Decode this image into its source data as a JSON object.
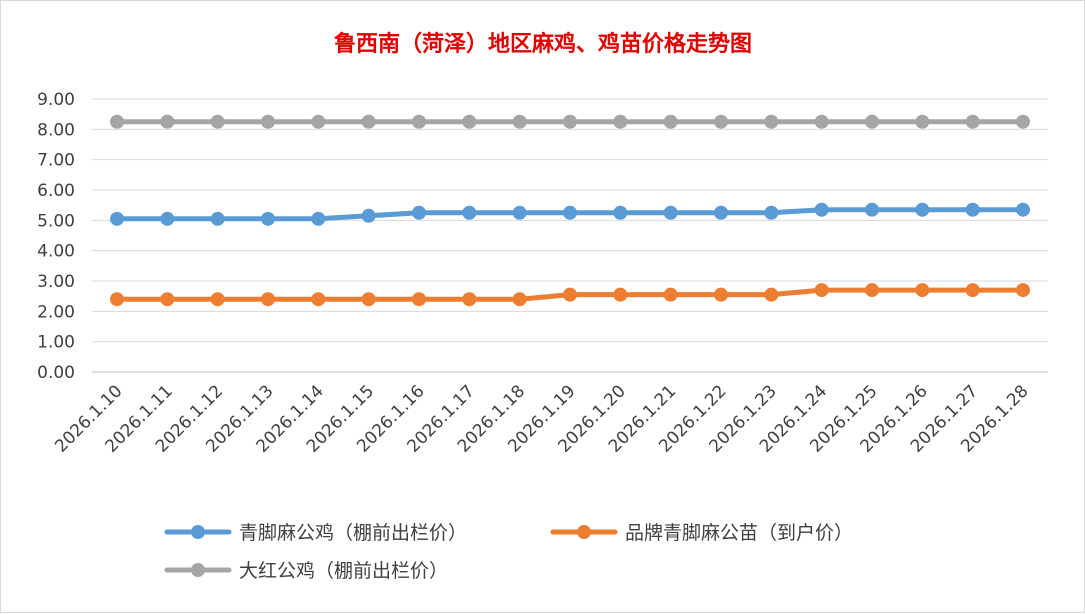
{
  "chart_data": {
    "type": "line",
    "title": "鲁西南（菏泽）地区麻鸡、鸡苗价格走势图",
    "xlabel": "",
    "ylabel": "",
    "ylim": [
      0,
      9
    ],
    "ytick_step": 1,
    "ytick_format_decimals": 2,
    "grid": true,
    "legend_position": "bottom",
    "categories": [
      "2026.1.10",
      "2026.1.11",
      "2026.1.12",
      "2026.1.13",
      "2026.1.14",
      "2026.1.15",
      "2026.1.16",
      "2026.1.17",
      "2026.1.18",
      "2026.1.19",
      "2026.1.20",
      "2026.1.21",
      "2026.1.22",
      "2026.1.23",
      "2026.1.24",
      "2026.1.25",
      "2026.1.26",
      "2026.1.27",
      "2026.1.28"
    ],
    "series": [
      {
        "name": "青脚麻公鸡（棚前出栏价）",
        "color": "#5b9bd5",
        "values": [
          5.05,
          5.05,
          5.05,
          5.05,
          5.05,
          5.15,
          5.25,
          5.25,
          5.25,
          5.25,
          5.25,
          5.25,
          5.25,
          5.25,
          5.35,
          5.35,
          5.35,
          5.35,
          5.35
        ]
      },
      {
        "name": "品牌青脚麻公苗（到户价）",
        "color": "#ed7d31",
        "values": [
          2.4,
          2.4,
          2.4,
          2.4,
          2.4,
          2.4,
          2.4,
          2.4,
          2.4,
          2.55,
          2.55,
          2.55,
          2.55,
          2.55,
          2.7,
          2.7,
          2.7,
          2.7,
          2.7
        ]
      },
      {
        "name": "大红公鸡（棚前出栏价）",
        "color": "#a5a5a5",
        "values": [
          8.25,
          8.25,
          8.25,
          8.25,
          8.25,
          8.25,
          8.25,
          8.25,
          8.25,
          8.25,
          8.25,
          8.25,
          8.25,
          8.25,
          8.25,
          8.25,
          8.25,
          8.25,
          8.25
        ]
      }
    ]
  }
}
